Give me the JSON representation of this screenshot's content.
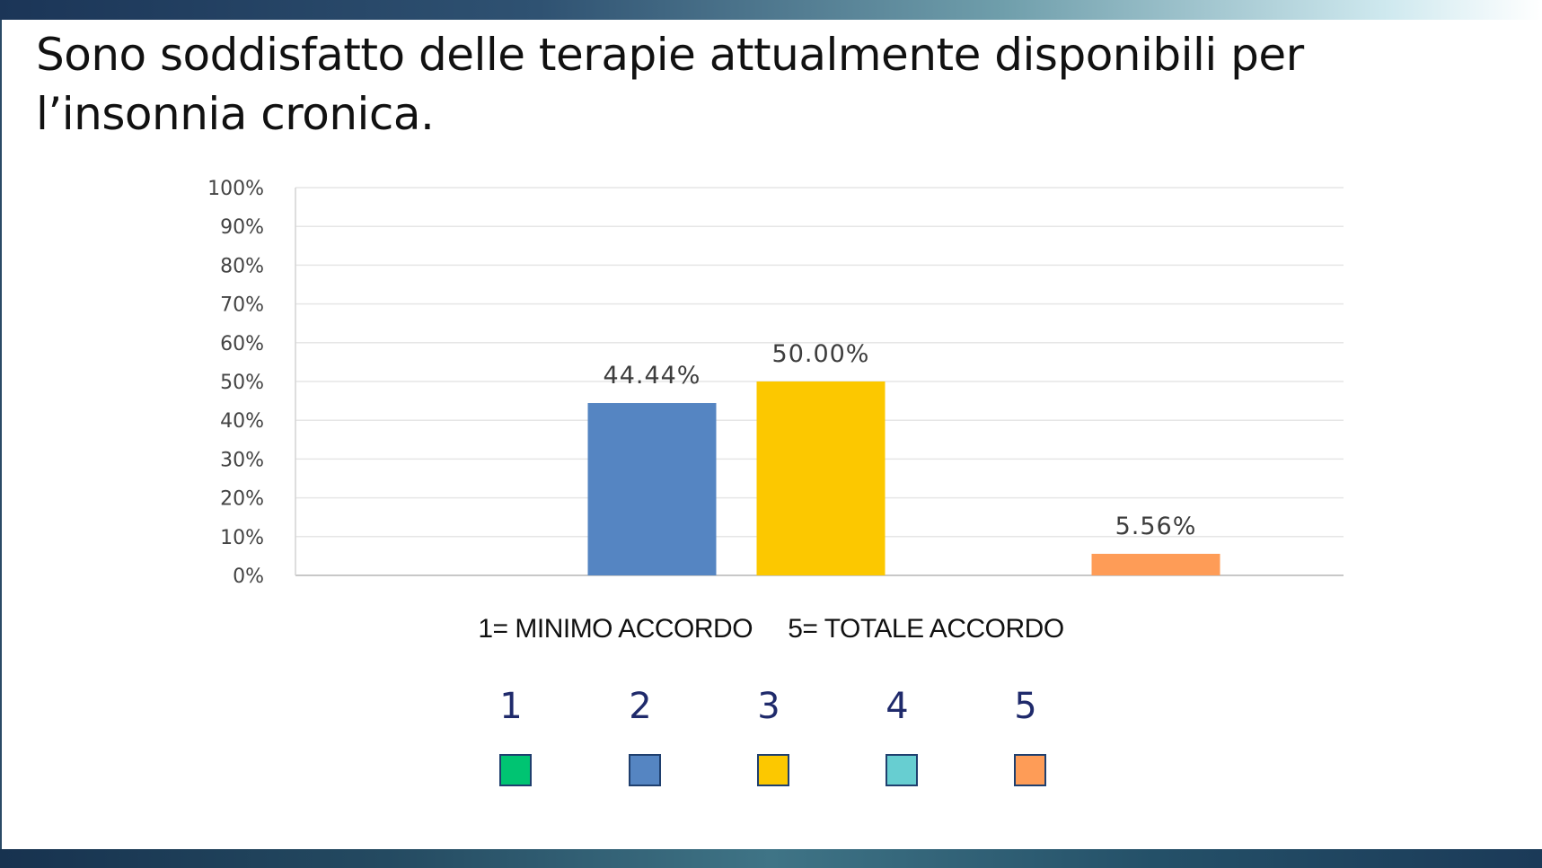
{
  "slide": {
    "title": "Sono soddisfatto delle terapie attualmente  disponibili per l’insonnia cronica.",
    "scale_caption": "1= MINIMO ACCORDO     5= TOTALE ACCORDO"
  },
  "legend": [
    {
      "label": "1",
      "color": "#00c472"
    },
    {
      "label": "2",
      "color": "#5585c2"
    },
    {
      "label": "3",
      "color": "#fcc800"
    },
    {
      "label": "4",
      "color": "#67ced1"
    },
    {
      "label": "5",
      "color": "#fe9c57"
    }
  ],
  "chart_data": {
    "type": "bar",
    "categories": [
      "1",
      "2",
      "3",
      "4",
      "5"
    ],
    "values": [
      0,
      44.44,
      50.0,
      0,
      5.56
    ],
    "data_labels": [
      "",
      "44.44%",
      "50.00%",
      "",
      "5.56%"
    ],
    "colors": [
      "#00c472",
      "#5585c2",
      "#fcc800",
      "#67ced1",
      "#fe9c57"
    ],
    "ylim": [
      0,
      100
    ],
    "yticks": [
      "0%",
      "10%",
      "20%",
      "30%",
      "40%",
      "50%",
      "60%",
      "70%",
      "80%",
      "90%",
      "100%"
    ],
    "grid": true,
    "legend": "bottom"
  }
}
